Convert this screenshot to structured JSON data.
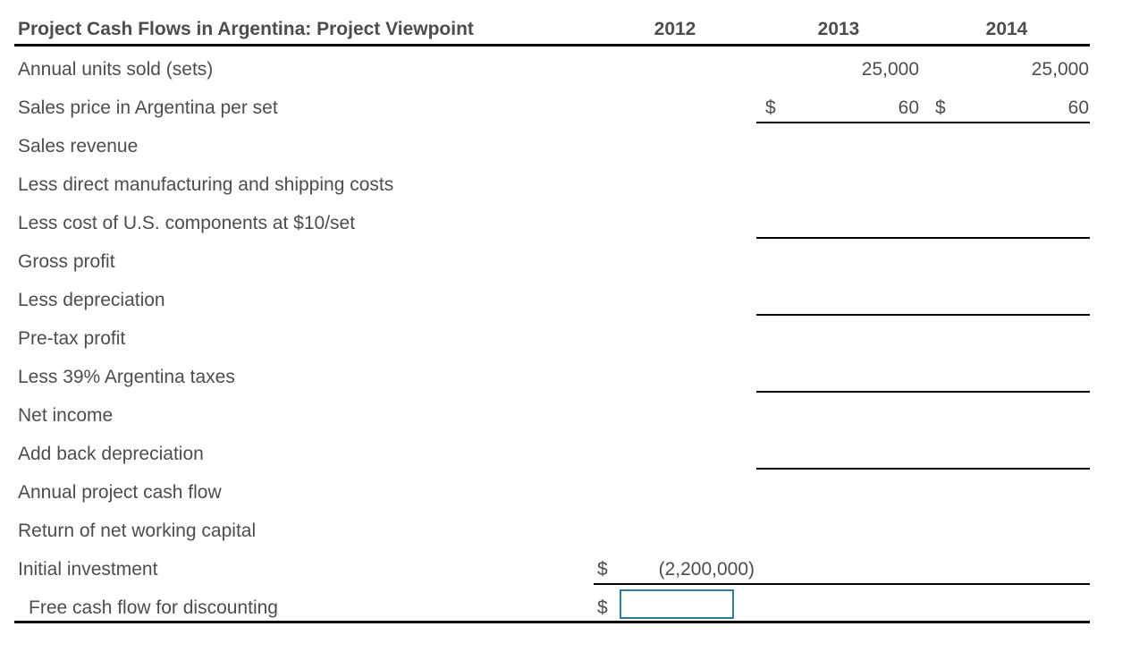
{
  "sheet": {
    "title": "Project Cash Flows in Argentina: Project Viewpoint",
    "currency_symbol": "$",
    "col_headers": {
      "y2012": "2012",
      "y2013": "2013",
      "y2014": "2014"
    },
    "rows": [
      {
        "label": "Annual units sold (sets)",
        "v2013": "25,000",
        "v2014": "25,000"
      },
      {
        "label": "Sales price in Argentina per set",
        "v2013": "60",
        "v2014": "60"
      },
      {
        "label": "Sales revenue"
      },
      {
        "label": "Less direct manufacturing and shipping costs"
      },
      {
        "label": "Less cost of U.S. components at $10/set"
      },
      {
        "label": "Gross profit"
      },
      {
        "label": "Less depreciation"
      },
      {
        "label": "Pre-tax profit"
      },
      {
        "label": "Less 39% Argentina taxes"
      },
      {
        "label": "Net income"
      },
      {
        "label": "Add back depreciation"
      },
      {
        "label": "Annual project cash flow"
      },
      {
        "label": "Return of net working capital"
      },
      {
        "label": "Initial investment",
        "v2012": "(2,200,000)"
      },
      {
        "label": "Free cash flow for discounting"
      }
    ],
    "input": {
      "value": "",
      "placeholder": ""
    },
    "colors": {
      "text": "#4d4d4d",
      "line": "#000000",
      "input_border": "#2e7d9c",
      "background": "#ffffff"
    }
  }
}
